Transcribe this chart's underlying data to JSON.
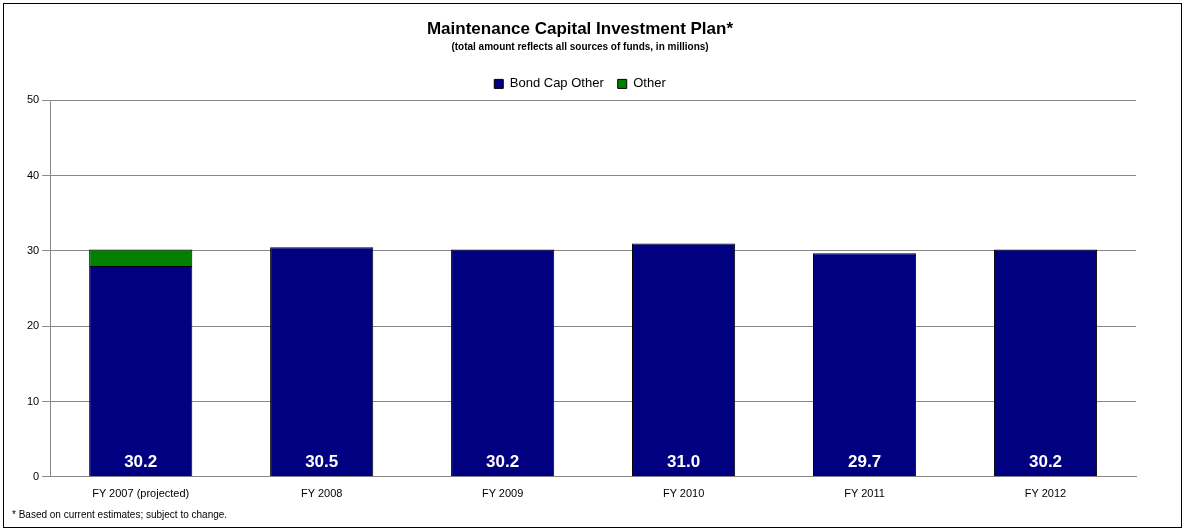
{
  "chart_data": {
    "type": "bar",
    "title": "Maintenance Capital Investment Plan*",
    "subtitle": "(total amount reflects all sources of funds, in millions)",
    "categories": [
      "FY 2007 (projected)",
      "FY 2008",
      "FY 2009",
      "FY 2010",
      "FY 2011",
      "FY 2012"
    ],
    "series": [
      {
        "name": "Bond Cap Other",
        "color": "#000080",
        "values": [
          28.0,
          30.5,
          30.2,
          31.0,
          29.7,
          30.2
        ]
      },
      {
        "name": "Other",
        "color": "#008000",
        "values": [
          2.2,
          null,
          null,
          null,
          null,
          null
        ]
      }
    ],
    "stacked": true,
    "totals": [
      "30.2",
      "30.5",
      "30.2",
      "31.0",
      "29.7",
      "30.2"
    ],
    "ylim": [
      0,
      50
    ],
    "yticks": [
      0,
      10,
      20,
      30,
      40,
      50
    ],
    "grid": "y",
    "legend": "top",
    "annotations": [
      "* Based on current estimates; subject to change."
    ]
  }
}
